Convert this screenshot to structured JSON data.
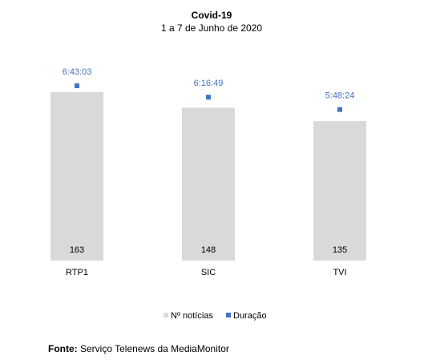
{
  "chart_data": {
    "type": "bar",
    "title": "Covid-19",
    "subtitle": "1 a 7 de Junho de 2020",
    "categories": [
      "RTP1",
      "SIC",
      "TVI"
    ],
    "series": [
      {
        "name": "Nº notícias",
        "kind": "bar",
        "values": [
          163,
          148,
          135
        ],
        "color": "#d9d9d9"
      },
      {
        "name": "Duração",
        "kind": "marker",
        "values": [
          "6:43:03",
          "6:16:49",
          "5:48:24"
        ],
        "color": "#4472c4"
      }
    ],
    "legend_position": "bottom",
    "grid": false
  },
  "source": {
    "label": "Fonte:",
    "text": "Serviço Telenews da MediaMonitor"
  }
}
